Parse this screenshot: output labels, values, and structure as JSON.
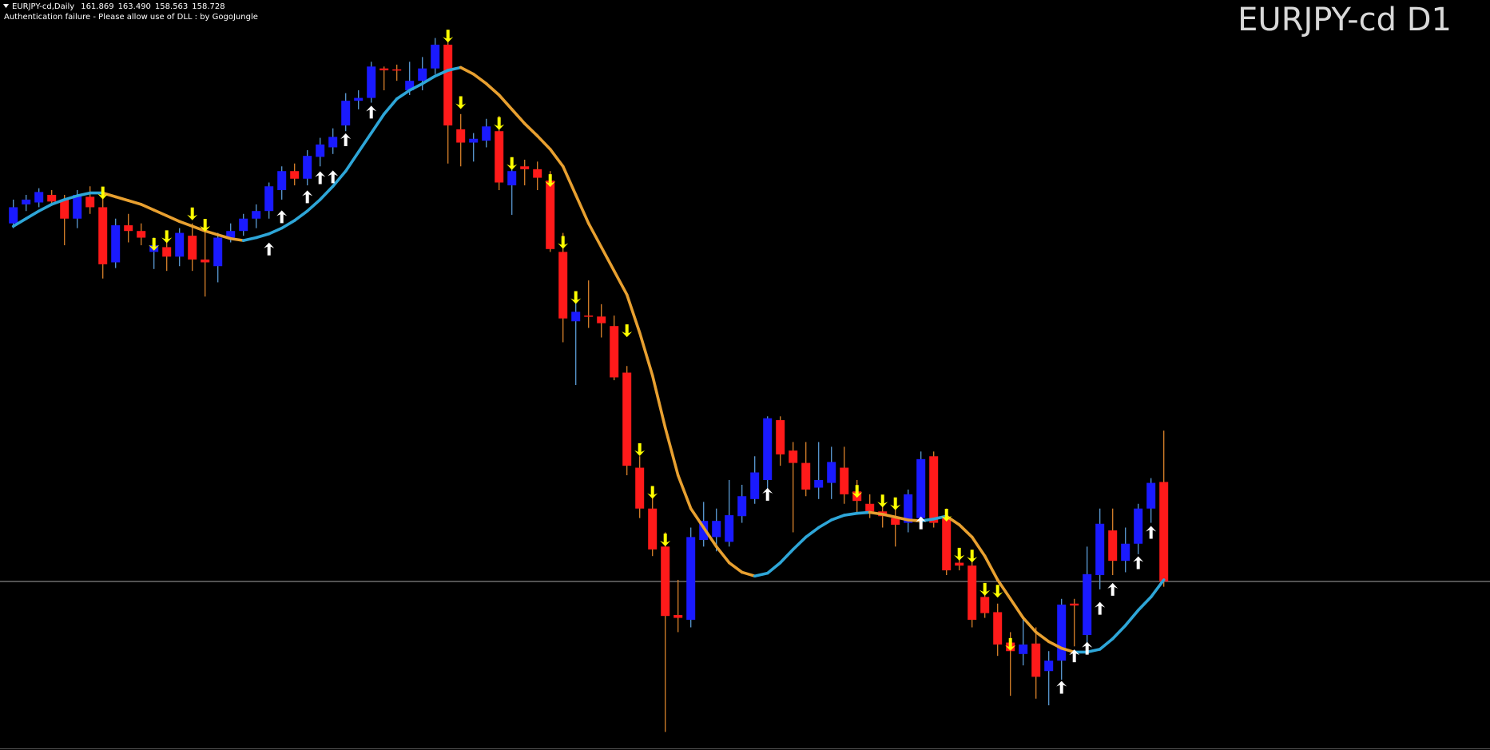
{
  "header": {
    "symbol": "EURJPY-cd,Daily",
    "ohlc_labels": [
      "161.869",
      "163.490",
      "158.563",
      "158.728"
    ],
    "message": "Authentication failure - Please allow use of DLL : by GogoJungle"
  },
  "chart_data": {
    "type": "candlestick",
    "title": "EURJPY-cd D1",
    "ylim": [
      153.41,
      177.08
    ],
    "open": [
      170.03,
      170.63,
      170.69,
      170.93,
      170.78,
      170.18,
      170.87,
      170.54,
      168.8,
      169.97,
      169.79,
      169.13,
      169.28,
      168.98,
      169.64,
      168.89,
      168.68,
      169.58,
      169.79,
      170.18,
      170.42,
      171.08,
      171.68,
      171.44,
      172.13,
      172.43,
      173.12,
      173.9,
      173.99,
      174.92,
      174.89,
      174.23,
      174.53,
      174.92,
      175.67,
      173.0,
      172.58,
      172.64,
      172.94,
      171.23,
      171.83,
      171.74,
      171.38,
      169.13,
      166.94,
      167.12,
      167.09,
      166.79,
      165.32,
      162.32,
      161.03,
      159.83,
      157.67,
      157.52,
      160.04,
      160.13,
      159.98,
      160.79,
      161.33,
      161.93,
      163.82,
      162.86,
      162.47,
      161.69,
      161.84,
      162.32,
      161.57,
      161.18,
      160.94,
      160.73,
      160.58,
      160.73,
      162.68,
      160.73,
      159.32,
      159.23,
      158.24,
      157.76,
      156.8,
      156.44,
      156.77,
      155.9,
      156.23,
      158.03,
      157.04,
      158.93,
      160.34,
      159.38,
      159.92,
      161.03,
      161.869
    ],
    "high": [
      170.78,
      170.93,
      171.14,
      171.08,
      170.93,
      171.08,
      171.2,
      171.08,
      170.18,
      170.33,
      170.03,
      169.58,
      169.73,
      169.88,
      170.03,
      169.88,
      169.73,
      170.03,
      170.33,
      170.63,
      171.32,
      171.83,
      171.92,
      172.34,
      172.73,
      173.03,
      174.14,
      174.23,
      175.13,
      174.98,
      175.04,
      175.13,
      175.28,
      175.88,
      175.88,
      173.48,
      172.88,
      173.33,
      173.42,
      171.98,
      172.04,
      171.98,
      171.68,
      169.73,
      167.78,
      168.23,
      167.48,
      167.12,
      165.53,
      162.68,
      161.63,
      160.28,
      158.78,
      160.43,
      161.24,
      161.03,
      161.93,
      161.78,
      162.68,
      163.94,
      163.94,
      163.13,
      163.13,
      163.13,
      162.98,
      162.98,
      161.93,
      161.48,
      161.33,
      161.03,
      161.63,
      162.83,
      162.83,
      161.03,
      159.68,
      159.53,
      158.63,
      158.03,
      157.13,
      157.64,
      157.28,
      156.53,
      158.18,
      158.18,
      159.83,
      161.03,
      161.03,
      160.43,
      161.18,
      161.99,
      163.49
    ],
    "low": [
      169.88,
      170.42,
      170.54,
      170.63,
      169.34,
      169.88,
      170.33,
      168.29,
      168.62,
      169.43,
      169.34,
      168.59,
      168.53,
      168.68,
      168.53,
      167.72,
      168.17,
      169.43,
      169.64,
      169.88,
      170.18,
      170.78,
      171.23,
      171.23,
      171.83,
      172.22,
      172.94,
      173.63,
      173.84,
      174.23,
      174.53,
      174.08,
      174.23,
      174.74,
      171.92,
      171.83,
      171.98,
      172.43,
      171.08,
      170.3,
      171.23,
      171.08,
      169.13,
      166.28,
      164.93,
      166.73,
      166.43,
      165.08,
      162.08,
      160.73,
      159.53,
      153.98,
      157.13,
      157.28,
      159.83,
      159.68,
      159.83,
      160.58,
      161.18,
      161.48,
      162.38,
      160.28,
      161.42,
      161.33,
      161.33,
      161.18,
      160.88,
      160.73,
      160.43,
      159.83,
      160.28,
      160.43,
      160.43,
      158.93,
      159.08,
      157.28,
      157.58,
      156.38,
      155.12,
      156.08,
      155.03,
      154.82,
      155.63,
      156.68,
      156.53,
      158.48,
      158.93,
      159.02,
      159.59,
      160.58,
      158.563
    ],
    "close": [
      170.54,
      170.78,
      171.02,
      170.72,
      170.18,
      170.93,
      170.54,
      168.74,
      169.97,
      169.79,
      169.58,
      169.34,
      168.98,
      169.73,
      168.89,
      168.8,
      169.58,
      169.79,
      170.18,
      170.42,
      171.2,
      171.68,
      171.44,
      172.16,
      172.52,
      172.76,
      173.9,
      173.99,
      174.98,
      174.86,
      174.86,
      174.53,
      174.92,
      175.67,
      173.12,
      172.58,
      172.7,
      173.09,
      171.32,
      171.68,
      171.74,
      171.47,
      169.22,
      167.03,
      167.24,
      167.09,
      166.88,
      165.17,
      162.38,
      161.03,
      159.74,
      157.64,
      157.58,
      160.13,
      160.64,
      160.64,
      160.82,
      161.42,
      162.17,
      163.88,
      162.74,
      162.47,
      161.63,
      161.93,
      162.5,
      161.48,
      161.27,
      160.94,
      160.79,
      160.52,
      161.48,
      162.59,
      160.58,
      159.08,
      159.23,
      157.52,
      157.73,
      156.74,
      156.53,
      156.74,
      155.72,
      156.23,
      158.0,
      157.97,
      158.96,
      160.55,
      159.38,
      159.92,
      161.03,
      161.84,
      158.728
    ],
    "colors": {
      "bull_body": "#1a1aff",
      "bear_body": "#ff1a1a",
      "bull_wick": "#5b9bd5",
      "bear_wick": "#d9822b",
      "background": "#000000",
      "bid_line": "#a6a6a6"
    },
    "bid_line": true,
    "ma": {
      "up_color": "#2ea6d8",
      "down_color": "#e8a030",
      "values": [
        169.94,
        170.18,
        170.42,
        170.63,
        170.78,
        170.9,
        170.99,
        170.99,
        170.87,
        170.75,
        170.63,
        170.45,
        170.27,
        170.09,
        169.94,
        169.79,
        169.67,
        169.55,
        169.49,
        169.58,
        169.7,
        169.88,
        170.12,
        170.42,
        170.78,
        171.2,
        171.68,
        172.28,
        172.88,
        173.48,
        173.96,
        174.23,
        174.44,
        174.68,
        174.86,
        174.95,
        174.74,
        174.44,
        174.08,
        173.63,
        173.18,
        172.79,
        172.37,
        171.83,
        170.93,
        170.03,
        169.28,
        168.53,
        167.78,
        166.58,
        165.23,
        163.58,
        162.08,
        161.03,
        160.43,
        159.83,
        159.32,
        159.02,
        158.9,
        158.99,
        159.32,
        159.74,
        160.13,
        160.43,
        160.67,
        160.82,
        160.88,
        160.91,
        160.85,
        160.76,
        160.67,
        160.64,
        160.7,
        160.79,
        160.52,
        160.13,
        159.53,
        158.78,
        158.18,
        157.58,
        157.13,
        156.83,
        156.62,
        156.5,
        156.5,
        156.59,
        156.92,
        157.34,
        157.82,
        158.24,
        158.78
      ]
    },
    "sell_arrows": {
      "color": "#ffff00",
      "values": [
        null,
        null,
        null,
        null,
        null,
        null,
        null,
        170.99,
        null,
        null,
        null,
        169.37,
        169.61,
        null,
        170.33,
        169.97,
        null,
        null,
        null,
        null,
        null,
        null,
        null,
        null,
        null,
        null,
        null,
        null,
        null,
        null,
        null,
        null,
        null,
        null,
        175.94,
        173.84,
        null,
        null,
        173.18,
        171.92,
        null,
        null,
        171.38,
        169.43,
        167.69,
        null,
        null,
        null,
        166.64,
        162.89,
        161.54,
        160.04,
        null,
        null,
        null,
        null,
        null,
        null,
        null,
        null,
        null,
        null,
        null,
        null,
        null,
        null,
        161.57,
        null,
        161.27,
        161.18,
        null,
        null,
        null,
        160.82,
        159.59,
        159.53,
        158.48,
        158.42,
        156.74,
        null,
        null,
        null,
        null,
        null,
        null,
        null,
        null,
        null,
        null,
        null,
        null
      ]
    },
    "buy_arrows": {
      "color": "#ffffff",
      "values": [
        null,
        null,
        null,
        null,
        null,
        null,
        null,
        null,
        null,
        null,
        null,
        null,
        null,
        null,
        null,
        null,
        null,
        null,
        null,
        null,
        169.22,
        170.24,
        null,
        170.87,
        171.47,
        171.5,
        172.67,
        null,
        173.54,
        null,
        null,
        null,
        null,
        null,
        null,
        null,
        null,
        null,
        null,
        null,
        null,
        null,
        null,
        null,
        null,
        null,
        null,
        null,
        null,
        null,
        null,
        null,
        null,
        null,
        null,
        null,
        null,
        null,
        null,
        161.48,
        null,
        null,
        null,
        null,
        null,
        null,
        null,
        null,
        null,
        null,
        null,
        160.58,
        null,
        null,
        null,
        null,
        null,
        null,
        null,
        null,
        null,
        null,
        155.39,
        156.38,
        156.62,
        157.88,
        158.48,
        null,
        159.32,
        160.28,
        null
      ]
    }
  }
}
